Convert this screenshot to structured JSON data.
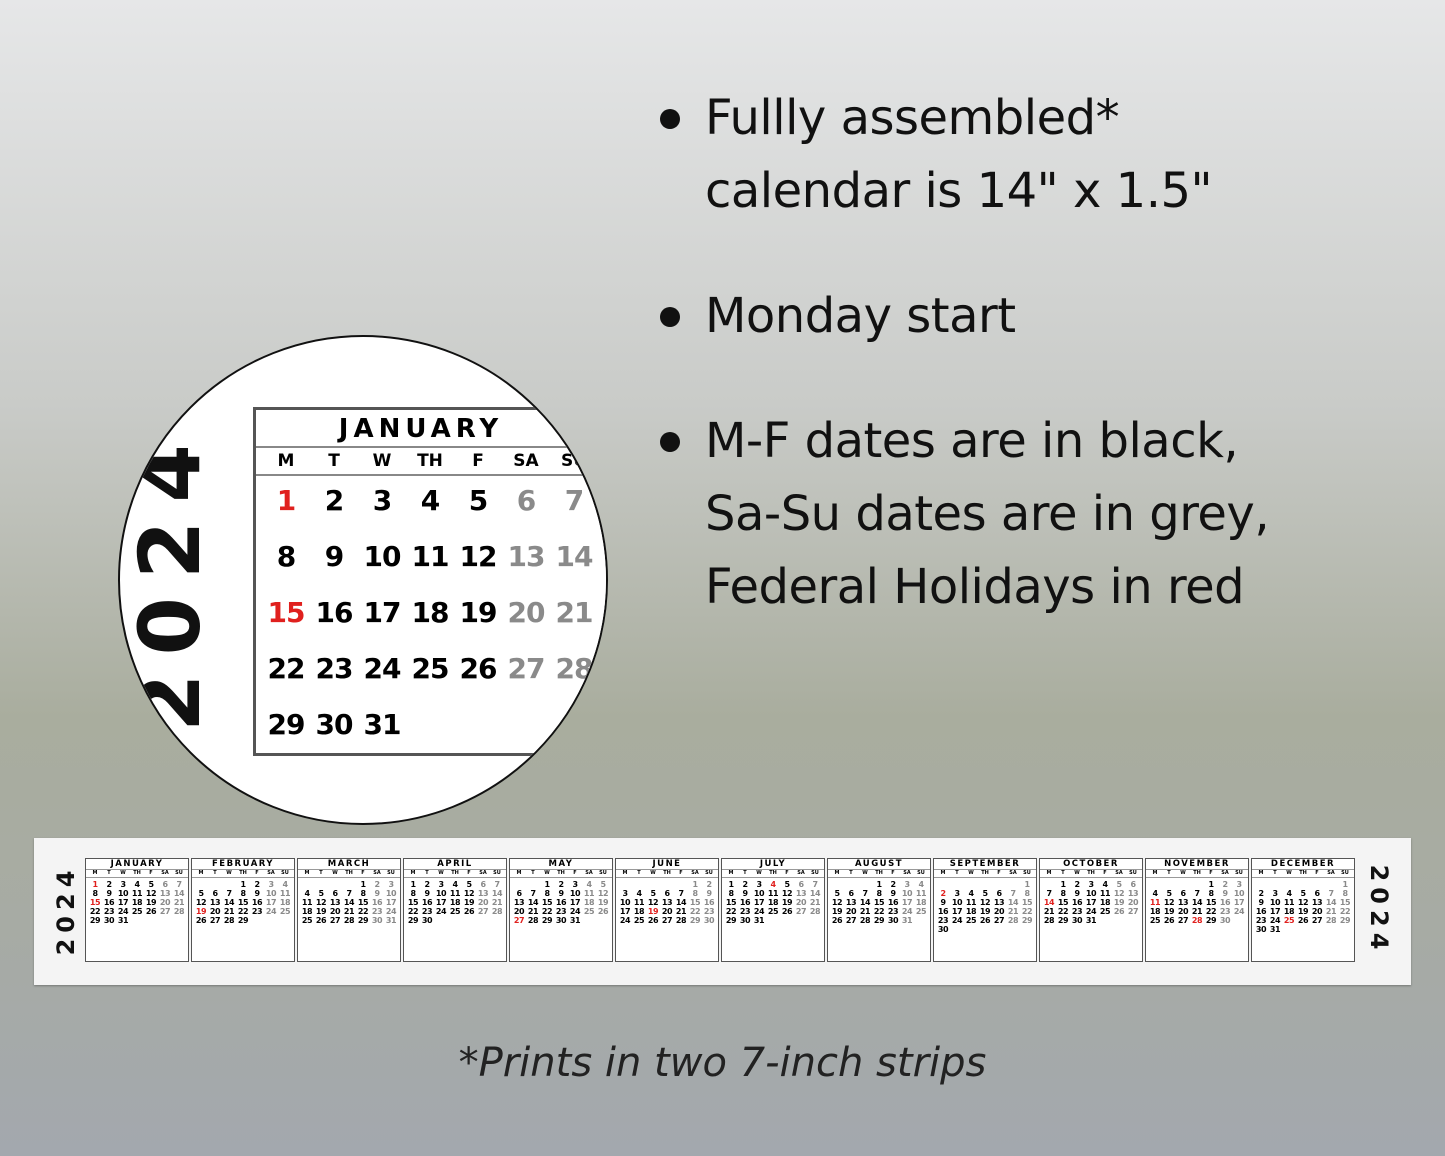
{
  "bullets": [
    {
      "lines": [
        "Fullly assembled*",
        "calendar is 14\" x 1.5\""
      ]
    },
    {
      "lines": [
        "Monday start"
      ]
    },
    {
      "lines": [
        "M-F dates are in black,",
        "Sa-Su dates are in grey,",
        "Federal Holidays in red"
      ]
    }
  ],
  "footer": "*Prints in two 7-inch strips",
  "year": "2024",
  "weekdays": [
    "M",
    "T",
    "W",
    "TH",
    "F",
    "SA",
    "SU"
  ],
  "months": [
    {
      "name": "JANUARY",
      "first_weekday": 1,
      "days": 31,
      "holidays": [
        1,
        15
      ]
    },
    {
      "name": "FEBRUARY",
      "first_weekday": 4,
      "days": 29,
      "holidays": [
        19
      ]
    },
    {
      "name": "MARCH",
      "first_weekday": 5,
      "days": 31,
      "holidays": []
    },
    {
      "name": "APRIL",
      "first_weekday": 1,
      "days": 30,
      "holidays": []
    },
    {
      "name": "MAY",
      "first_weekday": 3,
      "days": 31,
      "holidays": [
        27
      ]
    },
    {
      "name": "JUNE",
      "first_weekday": 6,
      "days": 30,
      "holidays": [
        19
      ]
    },
    {
      "name": "JULY",
      "first_weekday": 1,
      "days": 31,
      "holidays": [
        4
      ]
    },
    {
      "name": "AUGUST",
      "first_weekday": 4,
      "days": 31,
      "holidays": []
    },
    {
      "name": "SEPTEMBER",
      "first_weekday": 7,
      "days": 30,
      "holidays": [
        2
      ]
    },
    {
      "name": "OCTOBER",
      "first_weekday": 2,
      "days": 31,
      "holidays": [
        14
      ]
    },
    {
      "name": "NOVEMBER",
      "first_weekday": 5,
      "days": 30,
      "holidays": [
        11,
        28
      ]
    },
    {
      "name": "DECEMBER",
      "first_weekday": 7,
      "days": 31,
      "holidays": [
        25
      ]
    }
  ],
  "colors": {
    "weekday": "#111111",
    "weekend": "#8a8a8a",
    "holiday": "#e0201e"
  }
}
